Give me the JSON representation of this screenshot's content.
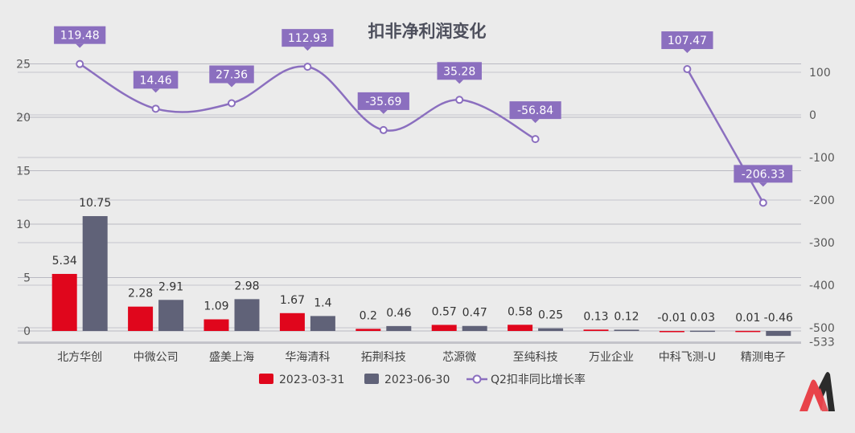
{
  "chart_data": {
    "type": "bar+line",
    "title": "扣非净利润变化",
    "categories": [
      "北方华创",
      "中微公司",
      "盛美上海",
      "华海清科",
      "拓荆科技",
      "芯源微",
      "至纯科技",
      "万业企业",
      "中科飞测-U",
      "精测电子"
    ],
    "series": [
      {
        "name": "2023-03-31",
        "type": "bar",
        "axis": "left",
        "color": "#e0061c",
        "values": [
          5.34,
          2.28,
          1.09,
          1.67,
          0.2,
          0.57,
          0.58,
          0.13,
          -0.01,
          0.01
        ],
        "labels": [
          "5.34",
          "2.28",
          "1.09",
          "1.67",
          "0.2",
          "0.57",
          "0.58",
          "0.13",
          "-0.01",
          "0.01"
        ]
      },
      {
        "name": "2023-06-30",
        "type": "bar",
        "axis": "left",
        "color": "#606278",
        "values": [
          10.75,
          2.91,
          2.98,
          1.4,
          0.46,
          0.47,
          0.25,
          0.12,
          0.03,
          -0.46
        ],
        "labels": [
          "10.75",
          "2.91",
          "2.98",
          "1.4",
          "0.46",
          "0.47",
          "0.25",
          "0.12",
          "0.03",
          "-0.46"
        ]
      },
      {
        "name": "Q2扣非同比增长率",
        "type": "line",
        "axis": "right",
        "color": "#8b6fbf",
        "values": [
          119.48,
          14.46,
          27.36,
          112.93,
          -35.69,
          35.28,
          -56.84,
          null,
          107.47,
          -206.33
        ],
        "labels": [
          "119.48",
          "14.46",
          "27.36",
          "112.93",
          "-35.69",
          "35.28",
          "-56.84",
          "",
          "107.47",
          "-206.33"
        ]
      }
    ],
    "left_axis": {
      "ticks": [
        "0",
        "5",
        "10",
        "15",
        "20",
        "25"
      ],
      "tick_values": [
        0,
        5,
        10,
        15,
        20,
        25
      ]
    },
    "right_axis": {
      "ticks": [
        "100",
        "0",
        "-100",
        "-200",
        "-300",
        "-400",
        "-500",
        "-533"
      ],
      "tick_values": [
        100,
        0,
        -100,
        -200,
        -300,
        -400,
        -500,
        -533
      ]
    },
    "grid": true,
    "legend": "bottom"
  },
  "logo": {
    "name": "brand-logo",
    "colors": [
      "#e8434a",
      "#2b2b2b"
    ]
  }
}
